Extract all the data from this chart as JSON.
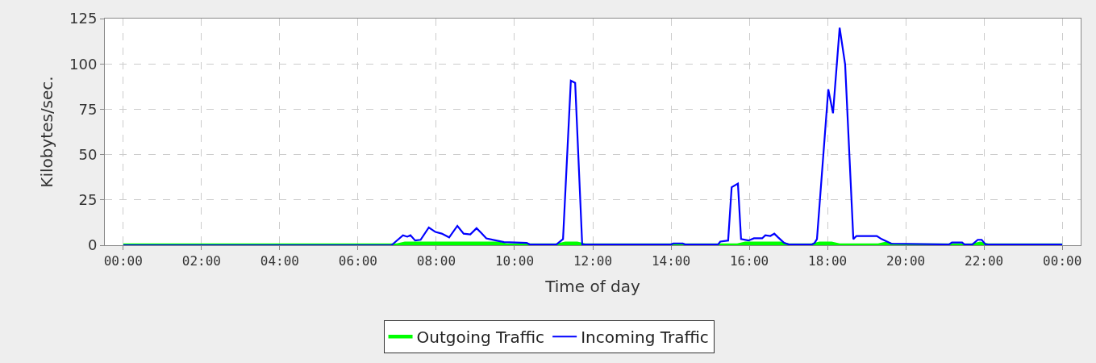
{
  "chart_data": {
    "type": "line",
    "xlabel": "Time of day",
    "ylabel": "Kilobytes/sec.",
    "xlim": [
      -0.47,
      24.47
    ],
    "xticks": [
      {
        "value": 0,
        "label": "00:00"
      },
      {
        "value": 2,
        "label": "02:00"
      },
      {
        "value": 4,
        "label": "04:00"
      },
      {
        "value": 6,
        "label": "06:00"
      },
      {
        "value": 8,
        "label": "08:00"
      },
      {
        "value": 10,
        "label": "10:00"
      },
      {
        "value": 12,
        "label": "12:00"
      },
      {
        "value": 14,
        "label": "14:00"
      },
      {
        "value": 16,
        "label": "16:00"
      },
      {
        "value": 18,
        "label": "18:00"
      },
      {
        "value": 20,
        "label": "20:00"
      },
      {
        "value": 22,
        "label": "22:00"
      },
      {
        "value": 24,
        "label": "00:00"
      }
    ],
    "ylim": [
      0,
      125
    ],
    "yticks": [
      0,
      25,
      50,
      75,
      100,
      125
    ],
    "grid": true,
    "legend": "bottom",
    "marker": "none",
    "line_style": "solid",
    "series": [
      {
        "name": "Outgoing Traffic",
        "color": "#00ff00",
        "x": [
          0,
          7.0,
          7.2,
          9.6,
          9.8,
          11.1,
          11.3,
          11.6,
          11.8,
          15.7,
          15.9,
          16.8,
          17.0,
          17.6,
          17.8,
          18.1,
          18.3,
          19.3,
          19.5,
          19.7,
          21.7,
          21.9,
          22.1,
          24
        ],
        "values": [
          0,
          0,
          1,
          1,
          0,
          0,
          1,
          1,
          0,
          0,
          1,
          1,
          0,
          0,
          1,
          1,
          0,
          0,
          1,
          0,
          0,
          1,
          0,
          0
        ]
      },
      {
        "name": "Incoming Traffic",
        "color": "#0000ff",
        "x": [
          0,
          6.85,
          6.91,
          7.15,
          7.26,
          7.34,
          7.46,
          7.6,
          7.81,
          7.98,
          8.14,
          8.33,
          8.54,
          8.7,
          8.87,
          9.03,
          9.15,
          9.28,
          9.53,
          9.73,
          10.31,
          10.39,
          11.07,
          11.24,
          11.44,
          11.55,
          11.73,
          14.0,
          14.06,
          14.3,
          14.36,
          15.2,
          15.26,
          15.46,
          15.55,
          15.71,
          15.79,
          15.98,
          16.12,
          16.33,
          16.41,
          16.54,
          16.64,
          16.74,
          16.89,
          17.01,
          17.6,
          17.67,
          17.73,
          18.02,
          18.14,
          18.31,
          18.45,
          18.66,
          18.74,
          19.26,
          19.38,
          19.63,
          21.1,
          21.18,
          21.44,
          21.5,
          21.7,
          21.84,
          21.94,
          22.04,
          24
        ],
        "values": [
          0,
          0,
          1,
          5.5,
          4.7,
          5.5,
          2.6,
          3,
          9.8,
          7.3,
          6.4,
          4.3,
          10.7,
          6.4,
          6,
          9.4,
          6.8,
          3.8,
          2.6,
          1.7,
          1.3,
          0.4,
          0.4,
          3.4,
          90.7,
          89.5,
          0.4,
          0.4,
          1,
          1,
          0.4,
          0.4,
          2,
          2.6,
          32,
          34,
          3.4,
          2.6,
          3.8,
          3.8,
          5.5,
          5.1,
          6.4,
          4.3,
          1.3,
          0.4,
          0.4,
          1.3,
          3.4,
          86,
          72.8,
          119.9,
          99.7,
          3.4,
          5.1,
          5.1,
          3.4,
          0.9,
          0.4,
          1.5,
          1.5,
          0.4,
          0.4,
          3,
          3,
          0.4,
          0.4
        ]
      }
    ]
  }
}
